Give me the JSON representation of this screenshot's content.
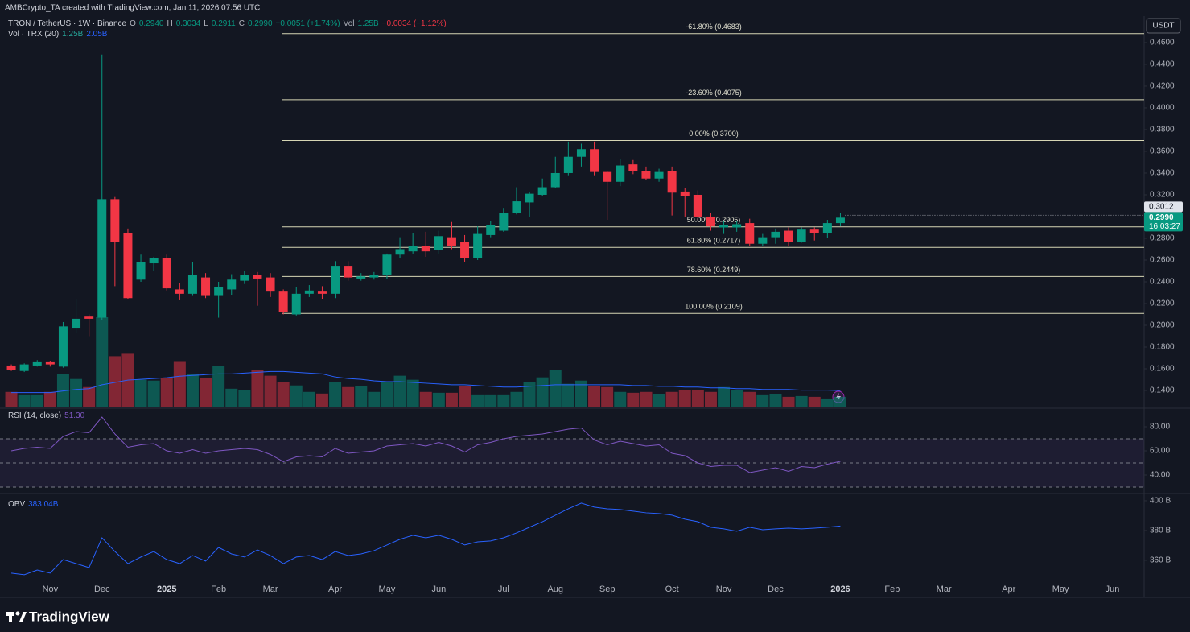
{
  "header": {
    "credit": "AMBCrypto_TA created with TradingView.com, Jan 11, 2026 07:56 UTC",
    "currency": "USDT"
  },
  "legend": {
    "symbol": "TRON / TetherUS · 1W · Binance",
    "items": [
      {
        "key": "O",
        "value": "0.2940"
      },
      {
        "key": "H",
        "value": "0.3034"
      },
      {
        "key": "L",
        "value": "0.2911"
      },
      {
        "key": "C",
        "value": "0.2990"
      }
    ],
    "change": "+0.0051 (+1.74%)",
    "vol_key": "Vol",
    "vol_value": "1.25B",
    "vol_change": "−0.0034 (−1.12%)"
  },
  "volume_legend": {
    "name": "Vol · TRX (20)",
    "value": "1.25B",
    "ma": "2.05B"
  },
  "rsi_legend": {
    "name": "RSI (14, close)",
    "value": "51.30"
  },
  "obv_legend": {
    "name": "OBV",
    "value": "383.04B"
  },
  "footer": {
    "brand": "TradingView"
  },
  "chart_data": [
    {
      "type": "candlestick",
      "up_color": "#089981",
      "down_color": "#f23645",
      "open": [
        0.163,
        0.158,
        0.163,
        0.166,
        0.162,
        0.197,
        0.208,
        0.207,
        0.316,
        0.285,
        0.242,
        0.257,
        0.262,
        0.233,
        0.229,
        0.244,
        0.227,
        0.233,
        0.241,
        0.246,
        0.244,
        0.231,
        0.21,
        0.229,
        0.231,
        0.229,
        0.254,
        0.243,
        0.244,
        0.246,
        0.265,
        0.268,
        0.273,
        0.269,
        0.281,
        0.277,
        0.262,
        0.283,
        0.287,
        0.303,
        0.313,
        0.32,
        0.327,
        0.34,
        0.355,
        0.362,
        0.341,
        0.332,
        0.348,
        0.342,
        0.335,
        0.342,
        0.323,
        0.32,
        0.3,
        0.29,
        0.29,
        0.294,
        0.275,
        0.281,
        0.287,
        0.277,
        0.288,
        0.285,
        0.294
      ],
      "high": [
        0.164,
        0.165,
        0.168,
        0.167,
        0.203,
        0.224,
        0.21,
        0.449,
        0.318,
        0.289,
        0.265,
        0.263,
        0.265,
        0.239,
        0.258,
        0.248,
        0.24,
        0.247,
        0.25,
        0.249,
        0.248,
        0.233,
        0.235,
        0.237,
        0.236,
        0.259,
        0.259,
        0.248,
        0.249,
        0.266,
        0.281,
        0.285,
        0.286,
        0.287,
        0.295,
        0.283,
        0.291,
        0.296,
        0.308,
        0.327,
        0.323,
        0.335,
        0.355,
        0.369,
        0.367,
        0.369,
        0.342,
        0.353,
        0.352,
        0.346,
        0.344,
        0.346,
        0.326,
        0.324,
        0.303,
        0.296,
        0.296,
        0.298,
        0.284,
        0.289,
        0.29,
        0.29,
        0.29,
        0.297,
        0.3034
      ],
      "low": [
        0.158,
        0.157,
        0.162,
        0.162,
        0.161,
        0.193,
        0.19,
        0.205,
        0.236,
        0.224,
        0.24,
        0.25,
        0.232,
        0.223,
        0.227,
        0.225,
        0.207,
        0.228,
        0.238,
        0.218,
        0.226,
        0.21,
        0.209,
        0.226,
        0.224,
        0.225,
        0.241,
        0.241,
        0.242,
        0.243,
        0.262,
        0.266,
        0.263,
        0.266,
        0.27,
        0.258,
        0.26,
        0.281,
        0.286,
        0.302,
        0.3,
        0.319,
        0.326,
        0.338,
        0.346,
        0.338,
        0.297,
        0.328,
        0.339,
        0.334,
        0.332,
        0.301,
        0.3,
        0.297,
        0.287,
        0.284,
        0.286,
        0.273,
        0.273,
        0.275,
        0.273,
        0.276,
        0.278,
        0.28,
        0.2911
      ],
      "close": [
        0.159,
        0.164,
        0.166,
        0.164,
        0.199,
        0.206,
        0.206,
        0.316,
        0.277,
        0.225,
        0.258,
        0.262,
        0.234,
        0.229,
        0.246,
        0.227,
        0.235,
        0.242,
        0.246,
        0.243,
        0.231,
        0.212,
        0.229,
        0.232,
        0.229,
        0.254,
        0.244,
        0.245,
        0.246,
        0.265,
        0.27,
        0.273,
        0.268,
        0.282,
        0.273,
        0.262,
        0.284,
        0.292,
        0.303,
        0.314,
        0.321,
        0.327,
        0.34,
        0.355,
        0.362,
        0.341,
        0.332,
        0.347,
        0.342,
        0.335,
        0.341,
        0.322,
        0.319,
        0.3,
        0.291,
        0.292,
        0.293,
        0.275,
        0.281,
        0.286,
        0.277,
        0.288,
        0.285,
        0.294,
        0.299
      ],
      "xlim": [
        -0.5,
        87.45
      ],
      "xticks": [
        {
          "value": 3,
          "label": "Nov"
        },
        {
          "value": 7,
          "label": "Dec"
        },
        {
          "value": 12,
          "label": "2025"
        },
        {
          "value": 16,
          "label": "Feb"
        },
        {
          "value": 20,
          "label": "Mar"
        },
        {
          "value": 25,
          "label": "Apr"
        },
        {
          "value": 29,
          "label": "May"
        },
        {
          "value": 33,
          "label": "Jun"
        },
        {
          "value": 38,
          "label": "Jul"
        },
        {
          "value": 42,
          "label": "Aug"
        },
        {
          "value": 46,
          "label": "Sep"
        },
        {
          "value": 51,
          "label": "Oct"
        },
        {
          "value": 55,
          "label": "Nov"
        },
        {
          "value": 59,
          "label": "Dec"
        },
        {
          "value": 64,
          "label": "2026"
        },
        {
          "value": 68,
          "label": "Feb"
        },
        {
          "value": 72,
          "label": "Mar"
        },
        {
          "value": 77,
          "label": "Apr"
        },
        {
          "value": 81,
          "label": "May"
        },
        {
          "value": 85,
          "label": "Jun"
        }
      ],
      "ylim": [
        0.1252,
        0.4844
      ],
      "yticks": [
        {
          "value": 0.46,
          "label": "0.4600"
        },
        {
          "value": 0.44,
          "label": "0.4400"
        },
        {
          "value": 0.42,
          "label": "0.4200"
        },
        {
          "value": 0.4,
          "label": "0.4000"
        },
        {
          "value": 0.38,
          "label": "0.3800"
        },
        {
          "value": 0.36,
          "label": "0.3600"
        },
        {
          "value": 0.34,
          "label": "0.3400"
        },
        {
          "value": 0.32,
          "label": "0.3200"
        },
        {
          "value": 0.28,
          "label": "0.2800"
        },
        {
          "value": 0.26,
          "label": "0.2600"
        },
        {
          "value": 0.24,
          "label": "0.2400"
        },
        {
          "value": 0.22,
          "label": "0.2200"
        },
        {
          "value": 0.2,
          "label": "0.2000"
        },
        {
          "value": 0.18,
          "label": "0.1800"
        },
        {
          "value": 0.16,
          "label": "0.1600"
        },
        {
          "value": 0.14,
          "label": "0.1400"
        }
      ],
      "fib_color": "#d6d6b4",
      "fib_levels": [
        {
          "label": "-61.80% (0.4683)",
          "value": 0.4683
        },
        {
          "label": "-23.60% (0.4075)",
          "value": 0.4075
        },
        {
          "label": "0.00% (0.3700)",
          "value": 0.37
        },
        {
          "label": "50.00% (0.2905)",
          "value": 0.2905
        },
        {
          "label": "61.80% (0.2717)",
          "value": 0.2717
        },
        {
          "label": "78.60% (0.2449)",
          "value": 0.2449
        },
        {
          "label": "100.00% (0.2109)",
          "value": 0.2109
        }
      ],
      "price_labels": [
        {
          "value": 0.3012,
          "label": "0.3012"
        },
        {
          "value": 0.299,
          "label": "0.2990",
          "countdown": "16:03:27"
        }
      ]
    },
    {
      "type": "bar",
      "up_color": "rgba(8,153,129,0.5)",
      "down_color": "rgba(242,54,69,0.5)",
      "values": [
        1.88,
        1.46,
        1.46,
        1.88,
        4.17,
        3.54,
        2.5,
        11.46,
        6.46,
        6.77,
        3.44,
        3.33,
        3.65,
        5.73,
        4.17,
        3.65,
        5.21,
        2.29,
        2.08,
        4.69,
        3.96,
        3.13,
        2.71,
        1.88,
        1.67,
        3.13,
        2.5,
        2.6,
        1.88,
        3.13,
        3.96,
        3.44,
        1.88,
        1.77,
        1.77,
        2.6,
        1.46,
        1.46,
        1.46,
        1.88,
        3.13,
        3.75,
        4.69,
        2.92,
        3.33,
        2.6,
        2.5,
        1.88,
        1.77,
        1.88,
        1.56,
        1.88,
        2.08,
        2.08,
        1.88,
        2.5,
        2.08,
        1.88,
        1.46,
        1.56,
        1.25,
        1.35,
        1.25,
        1.04,
        1.25
      ],
      "ylim": [
        0,
        16
      ],
      "ma": {
        "color": "#2962ff",
        "values": [
          1.8,
          1.8,
          1.8,
          1.8,
          2.0,
          2.2,
          2.3,
          2.8,
          3.1,
          3.4,
          3.5,
          3.6,
          3.7,
          3.9,
          4.0,
          4.1,
          4.2,
          4.2,
          4.3,
          4.4,
          4.5,
          4.5,
          4.4,
          4.3,
          4.2,
          3.8,
          3.6,
          3.5,
          3.3,
          3.2,
          3.2,
          3.1,
          3.0,
          2.9,
          2.8,
          2.8,
          2.7,
          2.6,
          2.5,
          2.5,
          2.6,
          2.7,
          2.8,
          2.8,
          2.8,
          2.8,
          2.8,
          2.8,
          2.7,
          2.7,
          2.6,
          2.6,
          2.5,
          2.5,
          2.4,
          2.4,
          2.3,
          2.3,
          2.2,
          2.2,
          2.2,
          2.1,
          2.1,
          2.1,
          2.05
        ]
      }
    },
    {
      "type": "line",
      "color": "#7e57c2",
      "values": [
        60,
        62,
        63,
        62,
        72,
        76,
        75,
        88,
        74,
        63,
        65,
        66,
        60,
        58,
        61,
        58,
        60,
        61,
        62,
        61,
        57,
        51,
        55,
        56,
        55,
        62,
        58,
        59,
        60,
        64,
        65,
        66,
        64,
        67,
        64,
        59,
        65,
        67,
        70,
        72,
        73,
        74,
        76,
        78,
        79,
        69,
        65,
        68,
        66,
        64,
        65,
        58,
        56,
        50,
        47,
        48,
        48,
        42,
        44,
        46,
        43,
        47,
        46,
        49,
        51.3
      ],
      "ylim": [
        25.33,
        94.67
      ],
      "yticks": [
        {
          "value": 80,
          "label": "80.00"
        },
        {
          "value": 60,
          "label": "60.00"
        },
        {
          "value": 40,
          "label": "40.00"
        }
      ],
      "bands": {
        "upper": 70,
        "middle": 50,
        "lower": 30
      }
    },
    {
      "type": "line",
      "color": "#2962ff",
      "values": [
        351.4,
        350.3,
        353.5,
        351.4,
        360.5,
        357.8,
        355.1,
        375.1,
        365.9,
        357.8,
        362.2,
        365.9,
        360.5,
        357.8,
        363.2,
        359.5,
        368.6,
        364.3,
        362.2,
        367,
        363.2,
        357.8,
        362.2,
        363.2,
        360.5,
        365.9,
        363.2,
        364.3,
        366.5,
        370.3,
        374.1,
        376.8,
        375.1,
        376.8,
        374.1,
        370.3,
        372.4,
        373,
        375.1,
        378.4,
        382.2,
        385.9,
        390.3,
        394.6,
        398.4,
        395.7,
        394.6,
        394.1,
        393,
        391.9,
        391.4,
        390.3,
        387.6,
        385.9,
        382.2,
        381.1,
        379.5,
        382.2,
        380.5,
        381.1,
        381.6,
        381.1,
        381.6,
        382.2,
        383.04
      ],
      "ylim": [
        347,
        404.3
      ],
      "yticks": [
        {
          "value": 400,
          "label": "400 B"
        },
        {
          "value": 380,
          "label": "380 B"
        },
        {
          "value": 360,
          "label": "360 B"
        }
      ]
    }
  ]
}
